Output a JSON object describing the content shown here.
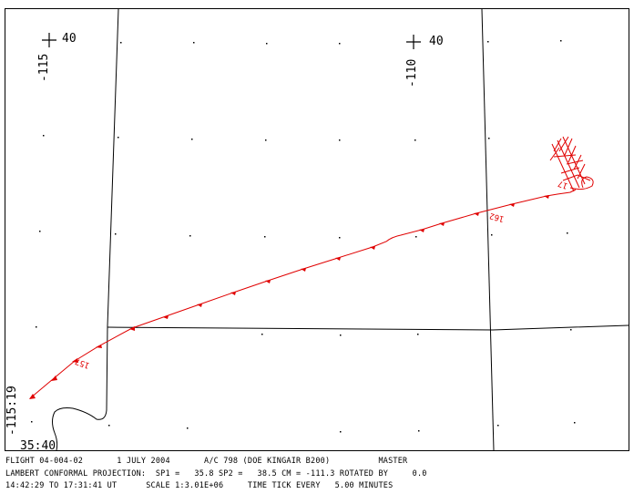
{
  "map": {
    "graticule": {
      "lon_115": "-115",
      "lon_110": "-110",
      "lat_40_a": "40",
      "lat_40_b": "40",
      "corner_lon": "-115:19",
      "corner_lat": "35:40"
    },
    "track_labels": {
      "start": "157",
      "end": "162",
      "end_marker": "17"
    },
    "colors": {
      "track": "#e00000",
      "frame": "#000000",
      "boundary": "#000000"
    }
  },
  "footer": {
    "line1": "FLIGHT 04-004-02       1 JULY 2004       A/C 798 (DOE KINGAIR B200)          MASTER",
    "line2": "LAMBERT CONFORMAL PROJECTION:  SP1 =   35.8 SP2 =   38.5 CM = -111.3 ROTATED BY     0.0",
    "line3": "14:42:29 TO 17:31:41 UT      SCALE 1:3.01E+06     TIME TICK EVERY   5.00 MINUTES"
  }
}
